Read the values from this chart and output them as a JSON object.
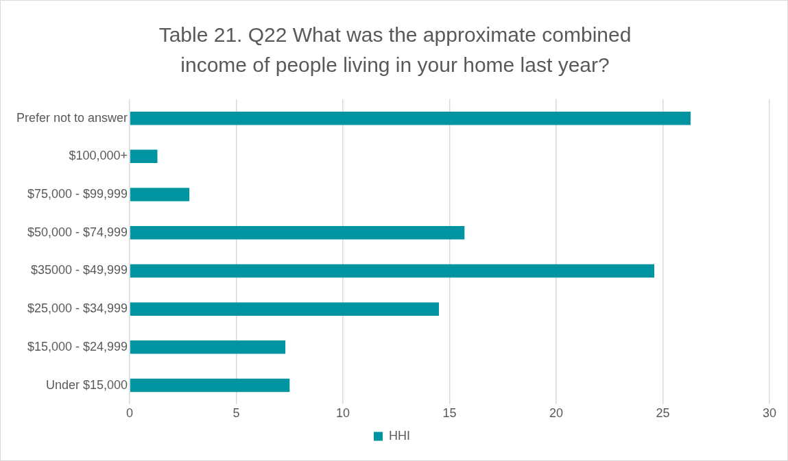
{
  "chart_data": {
    "type": "bar",
    "orientation": "horizontal",
    "title": "Table 21. Q22 What was the approximate combined income of people living in your home last year?",
    "categories": [
      "Prefer not to answer",
      "$100,000+",
      "$75,000 - $99,999",
      "$50,000 - $74,999",
      "$35000 - $49,999",
      "$25,000 - $34,999",
      "$15,000 - $24,999",
      "Under $15,000"
    ],
    "series": [
      {
        "name": "HHI",
        "color": "#0094a1",
        "values": [
          26.3,
          1.3,
          2.8,
          15.7,
          24.6,
          14.5,
          7.3,
          7.5
        ]
      }
    ],
    "xlim": [
      0,
      30
    ],
    "xticks": [
      0,
      5,
      10,
      15,
      20,
      25,
      30
    ],
    "grid": "x",
    "legend": "bottom"
  }
}
